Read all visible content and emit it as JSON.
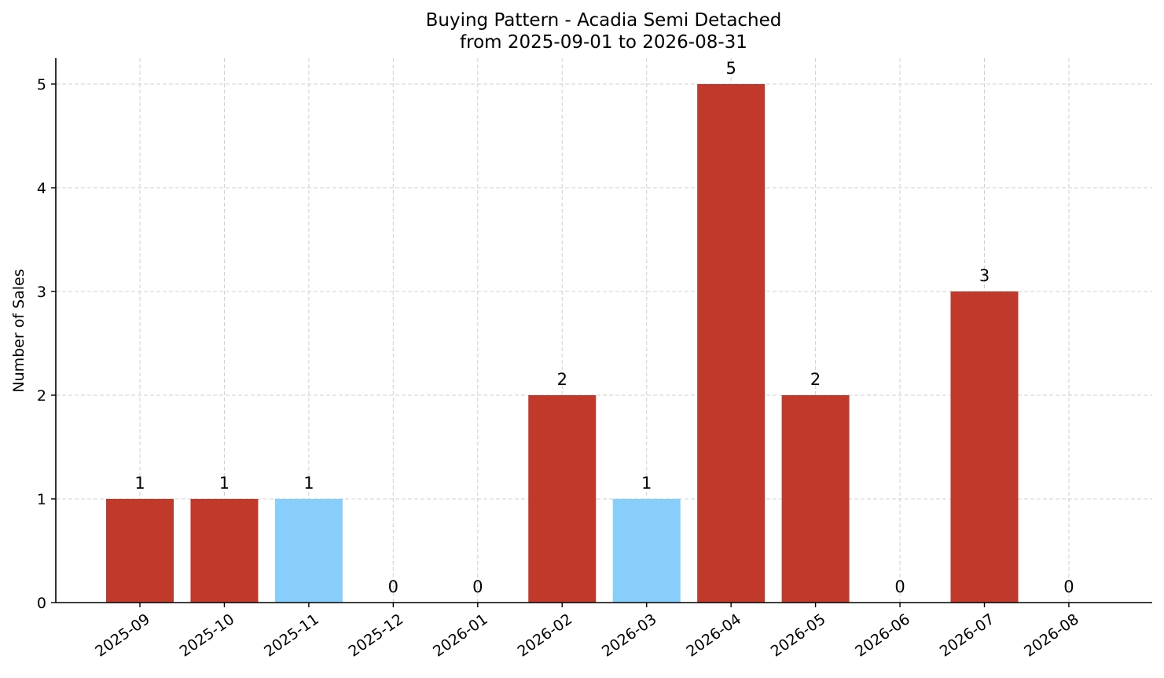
{
  "chart_data": {
    "type": "bar",
    "title": "Buying Pattern - Acadia Semi Detached",
    "subtitle": "from 2025-09-01 to 2026-08-31",
    "xlabel": "",
    "ylabel": "Number of Sales",
    "categories": [
      "2025-09",
      "2025-10",
      "2025-11",
      "2025-12",
      "2026-01",
      "2026-02",
      "2026-03",
      "2026-04",
      "2026-05",
      "2026-06",
      "2026-07",
      "2026-08"
    ],
    "values": [
      1,
      1,
      1,
      0,
      0,
      2,
      1,
      5,
      2,
      0,
      3,
      0
    ],
    "bar_colors": [
      "#c0392b",
      "#c0392b",
      "#87cefa",
      "#c0392b",
      "#c0392b",
      "#c0392b",
      "#87cefa",
      "#c0392b",
      "#c0392b",
      "#c0392b",
      "#c0392b",
      "#c0392b"
    ],
    "ylim": [
      0,
      5.25
    ],
    "yticks": [
      0,
      1,
      2,
      3,
      4,
      5
    ],
    "grid": true,
    "legend": "none"
  }
}
